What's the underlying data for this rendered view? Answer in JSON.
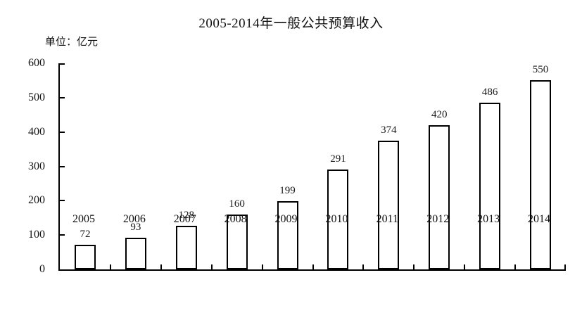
{
  "chart_data": {
    "type": "bar",
    "title": "2005-2014年一般公共预算收入",
    "unit_label": "单位：亿元",
    "categories": [
      "2005",
      "2006",
      "2007",
      "2008",
      "2009",
      "2010",
      "2011",
      "2012",
      "2013",
      "2014"
    ],
    "values": [
      72,
      93,
      128,
      160,
      199,
      291,
      374,
      420,
      486,
      550
    ],
    "xlabel": "",
    "ylabel": "",
    "ylim": [
      0,
      600
    ],
    "yticks": [
      0,
      100,
      200,
      300,
      400,
      500,
      600
    ],
    "grid": false,
    "legend": false,
    "value_labels_shown": true,
    "colors": {
      "bar_fill": "#ffffff",
      "bar_border": "#000000",
      "axis": "#000000",
      "text": "#111111",
      "background": "#ffffff"
    }
  }
}
